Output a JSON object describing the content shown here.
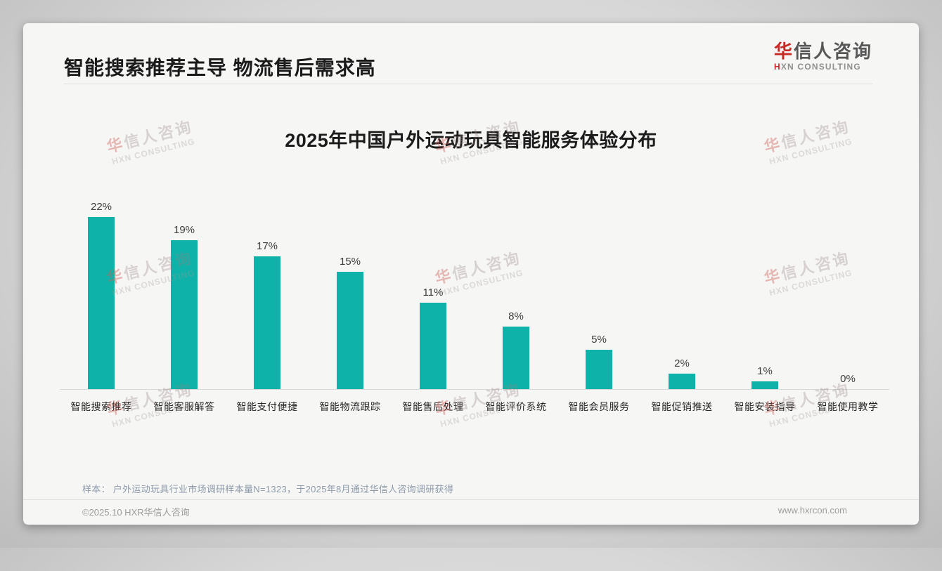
{
  "header": {
    "title": "智能搜索推荐主导 物流售后需求高"
  },
  "logo": {
    "zh_accent": "华",
    "zh_rest": "信人咨询",
    "en_accent": "H",
    "en_rest": "XN CONSULTING"
  },
  "watermark": {
    "zh_accent": "华",
    "zh_rest": "信人咨询",
    "en": "HXN CONSULTING"
  },
  "chart_data": {
    "type": "bar",
    "title": "2025年中国户外运动玩具智能服务体验分布",
    "categories": [
      "智能搜索推荐",
      "智能客服解答",
      "智能支付便捷",
      "智能物流跟踪",
      "智能售后处理",
      "智能评价系统",
      "智能会员服务",
      "智能促销推送",
      "智能安装指导",
      "智能使用教学"
    ],
    "values": [
      22,
      19,
      17,
      15,
      11,
      8,
      5,
      2,
      1,
      0
    ],
    "unit": "%",
    "xlabel": "",
    "ylabel": "",
    "ylim": [
      0,
      24
    ],
    "grid": false,
    "legend": "none",
    "bar_color": "#0fb2a8",
    "value_labels": [
      "22%",
      "19%",
      "17%",
      "15%",
      "11%",
      "8%",
      "5%",
      "2%",
      "1%",
      "0%"
    ]
  },
  "footnote": "样本： 户外运动玩具行业市场调研样本量N=1323，于2025年8月通过华信人咨询调研获得",
  "footer": {
    "left": "©2025.10 HXR华信人咨询",
    "right": "www.hxrcon.com"
  }
}
